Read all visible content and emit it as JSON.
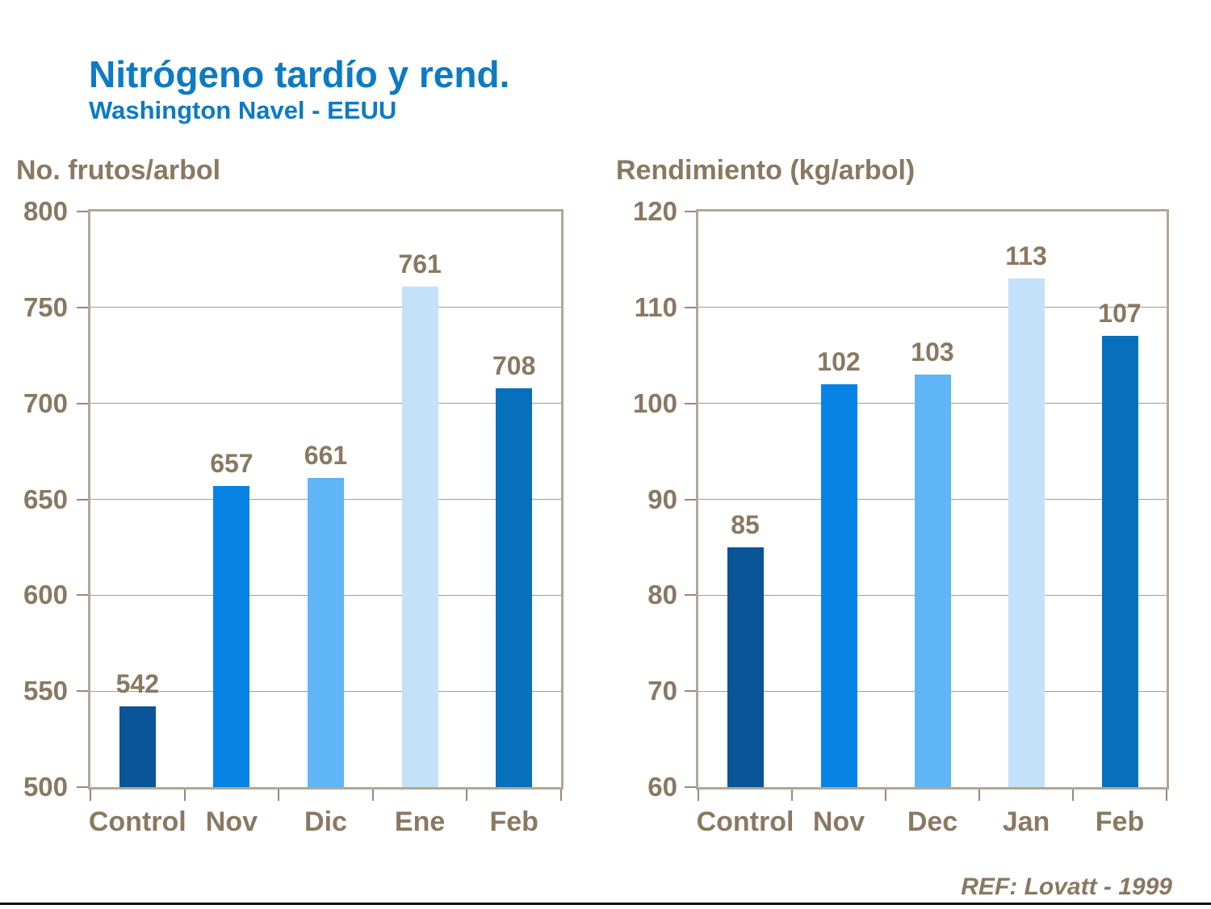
{
  "header": {
    "title": "Nitrógeno tardío y rend.",
    "subtitle": "Washington Navel - EEUU"
  },
  "footer": {
    "ref": "REF: Lovatt - 1999"
  },
  "colors": {
    "title_blue": "#0d7ac4",
    "text_brown": "#8a7861",
    "axis_border_tan": "#b3a795",
    "gridline_gray": "#a89c90",
    "bottom_rule_black": "#111111"
  },
  "chart_data": [
    {
      "type": "bar",
      "title": "No. frutos/arbol",
      "categories": [
        "Control",
        "Nov",
        "Dic",
        "Ene",
        "Feb"
      ],
      "values": [
        542,
        657,
        661,
        761,
        708
      ],
      "bar_colors": [
        "#0a5499",
        "#0884e6",
        "#5fb5f5",
        "#c4e1fa",
        "#0670bd"
      ],
      "value_labels": [
        "542",
        "657",
        "661",
        "761",
        "708"
      ],
      "ylim": [
        500,
        800
      ],
      "yticks": [
        800,
        750,
        700,
        650,
        600,
        550,
        500
      ],
      "grid": true,
      "legend": "none"
    },
    {
      "type": "bar",
      "title": "Rendimiento (kg/arbol)",
      "categories": [
        "Control",
        "Nov",
        "Dec",
        "Jan",
        "Feb"
      ],
      "values": [
        85,
        102,
        103,
        113,
        107
      ],
      "bar_colors": [
        "#0a5499",
        "#0884e6",
        "#5fb5f5",
        "#c4e1fa",
        "#0670bd"
      ],
      "value_labels": [
        "85",
        "102",
        "103",
        "113",
        "107"
      ],
      "ylim": [
        60,
        120
      ],
      "yticks": [
        120,
        110,
        100,
        90,
        80,
        70,
        60
      ],
      "grid": true,
      "legend": "none"
    }
  ]
}
